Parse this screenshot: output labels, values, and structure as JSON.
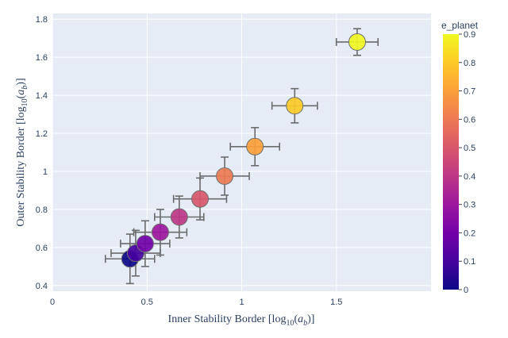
{
  "chart_data": {
    "type": "scatter",
    "xlabel": "Inner Stability Border [log10(ab)]",
    "ylabel": "Outer Stability Border [log10(ab)]",
    "xlim": [
      0,
      2.0
    ],
    "ylim": [
      0.37,
      1.83
    ],
    "x_ticks": [
      "0",
      "0.5",
      "1",
      "1.5"
    ],
    "y_ticks": [
      "0.4",
      "0.6",
      "0.8",
      "1",
      "1.2",
      "1.4",
      "1.6",
      "1.8"
    ],
    "colorbar": {
      "title": "e_planet",
      "range": [
        0,
        0.9
      ],
      "ticks": [
        "0",
        "0.1",
        "0.2",
        "0.3",
        "0.4",
        "0.5",
        "0.6",
        "0.7",
        "0.8",
        "0.9"
      ],
      "colorscale": [
        "#0d0887",
        "#46039f",
        "#7201a8",
        "#9c179e",
        "#bd3786",
        "#d8576b",
        "#ed7953",
        "#fb9f3a",
        "#fdca26",
        "#f0f921"
      ]
    },
    "points": [
      {
        "x": 0.41,
        "y": 0.54,
        "ex": 0.13,
        "ey": 0.13,
        "e": 0.0
      },
      {
        "x": 0.44,
        "y": 0.57,
        "ex": 0.13,
        "ey": 0.12,
        "e": 0.1
      },
      {
        "x": 0.49,
        "y": 0.62,
        "ex": 0.13,
        "ey": 0.12,
        "e": 0.2
      },
      {
        "x": 0.57,
        "y": 0.68,
        "ex": 0.14,
        "ey": 0.12,
        "e": 0.3
      },
      {
        "x": 0.67,
        "y": 0.76,
        "ex": 0.13,
        "ey": 0.11,
        "e": 0.4
      },
      {
        "x": 0.78,
        "y": 0.855,
        "ex": 0.14,
        "ey": 0.11,
        "e": 0.5
      },
      {
        "x": 0.91,
        "y": 0.975,
        "ex": 0.13,
        "ey": 0.1,
        "e": 0.6
      },
      {
        "x": 1.07,
        "y": 1.13,
        "ex": 0.13,
        "ey": 0.1,
        "e": 0.7
      },
      {
        "x": 1.28,
        "y": 1.345,
        "ex": 0.12,
        "ey": 0.09,
        "e": 0.8
      },
      {
        "x": 1.61,
        "y": 1.68,
        "ex": 0.11,
        "ey": 0.07,
        "e": 0.9
      }
    ]
  }
}
